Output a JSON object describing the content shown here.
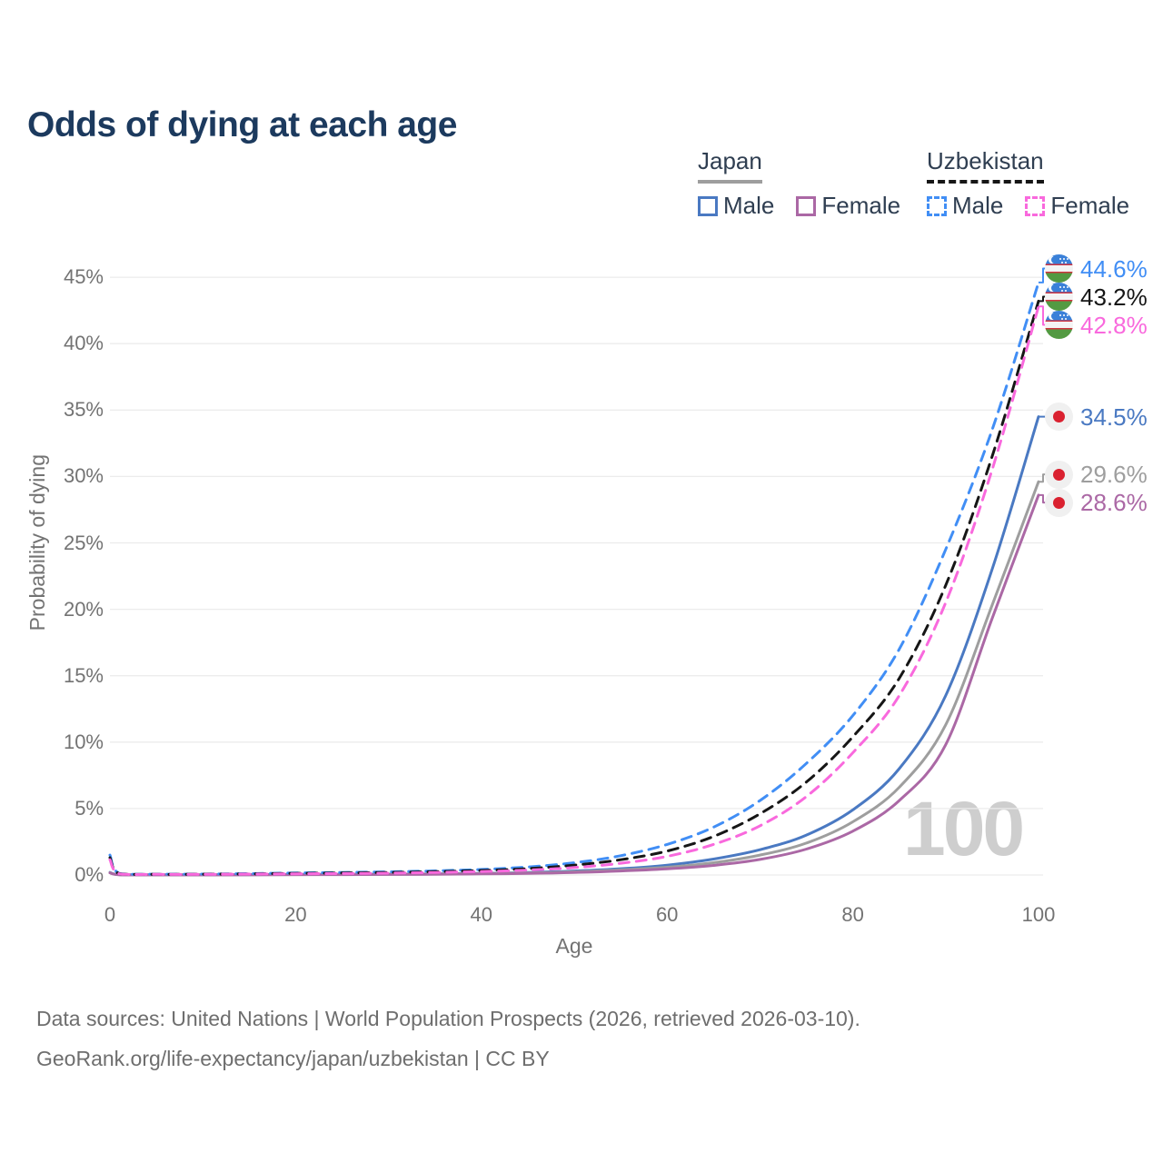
{
  "title": "Odds of dying at each age",
  "legend": {
    "japan": {
      "label": "Japan",
      "male": "Male",
      "female": "Female",
      "style": "solid",
      "line_color": "#9e9e9e",
      "male_color": "#4a79c2",
      "female_color": "#ab68a5"
    },
    "uzbekistan": {
      "label": "Uzbekistan",
      "male": "Male",
      "female": "Female",
      "style": "dashed",
      "line_color": "#161616",
      "male_color": "#418ef5",
      "female_color": "#f969dd"
    }
  },
  "chart_data": {
    "type": "line",
    "title": "Odds of dying at each age",
    "xlabel": "Age",
    "ylabel": "Probability of dying",
    "xlim": [
      0,
      100
    ],
    "ylim": [
      0,
      46
    ],
    "grid": "horizontal",
    "legend_position": "top-right",
    "age_marker": "100",
    "x_ticks": [
      {
        "label": "0",
        "value": 0
      },
      {
        "label": "20",
        "value": 20
      },
      {
        "label": "40",
        "value": 40
      },
      {
        "label": "60",
        "value": 60
      },
      {
        "label": "80",
        "value": 80
      },
      {
        "label": "100",
        "value": 100
      }
    ],
    "y_ticks": [
      {
        "label": "0%",
        "value": 0
      },
      {
        "label": "5%",
        "value": 5
      },
      {
        "label": "10%",
        "value": 10
      },
      {
        "label": "15%",
        "value": 15
      },
      {
        "label": "20%",
        "value": 20
      },
      {
        "label": "25%",
        "value": 25
      },
      {
        "label": "30%",
        "value": 30
      },
      {
        "label": "35%",
        "value": 35
      },
      {
        "label": "40%",
        "value": 40
      },
      {
        "label": "45%",
        "value": 45
      }
    ],
    "x": [
      0,
      1,
      5,
      10,
      15,
      20,
      25,
      30,
      35,
      40,
      45,
      50,
      55,
      60,
      65,
      70,
      75,
      80,
      85,
      90,
      95,
      100
    ],
    "series": [
      {
        "name": "Uzbekistan Male",
        "color": "#418ef5",
        "dash": true,
        "flag": "uzbekistan",
        "end_label": "44.6%",
        "values": [
          1.5,
          0.12,
          0.06,
          0.07,
          0.1,
          0.15,
          0.19,
          0.24,
          0.31,
          0.42,
          0.6,
          0.92,
          1.45,
          2.3,
          3.6,
          5.6,
          8.4,
          12.0,
          17.0,
          24.5,
          33.5,
          44.6
        ]
      },
      {
        "name": "Uzbekistan",
        "color": "#161616",
        "dash": true,
        "flag": "uzbekistan",
        "end_label": "43.2%",
        "values": [
          1.3,
          0.1,
          0.05,
          0.06,
          0.08,
          0.12,
          0.15,
          0.19,
          0.25,
          0.34,
          0.48,
          0.74,
          1.15,
          1.8,
          2.9,
          4.6,
          7.0,
          10.4,
          14.8,
          21.8,
          31.5,
          43.2
        ]
      },
      {
        "name": "Uzbekistan Female",
        "color": "#f969dd",
        "dash": true,
        "flag": "uzbekistan",
        "end_label": "42.8%",
        "values": [
          1.15,
          0.09,
          0.05,
          0.05,
          0.07,
          0.09,
          0.11,
          0.14,
          0.19,
          0.26,
          0.37,
          0.56,
          0.88,
          1.4,
          2.3,
          3.7,
          5.9,
          9.2,
          13.5,
          20.5,
          30.5,
          42.8
        ]
      },
      {
        "name": "Japan Male",
        "color": "#4a79c2",
        "dash": false,
        "flag": "japan",
        "end_label": "34.5%",
        "values": [
          0.19,
          0.03,
          0.01,
          0.01,
          0.02,
          0.04,
          0.05,
          0.06,
          0.08,
          0.12,
          0.19,
          0.3,
          0.47,
          0.74,
          1.2,
          1.9,
          3.0,
          4.9,
          8.0,
          13.5,
          23.0,
          34.5
        ]
      },
      {
        "name": "Japan",
        "color": "#9e9e9e",
        "dash": false,
        "flag": "japan",
        "end_label": "29.6%",
        "values": [
          0.17,
          0.025,
          0.009,
          0.009,
          0.017,
          0.03,
          0.04,
          0.05,
          0.065,
          0.1,
          0.15,
          0.24,
          0.38,
          0.58,
          0.92,
          1.5,
          2.4,
          4.0,
          6.6,
          11.3,
          20.3,
          29.6
        ]
      },
      {
        "name": "Japan Female",
        "color": "#ab68a5",
        "dash": false,
        "flag": "japan",
        "end_label": "28.6%",
        "values": [
          0.16,
          0.02,
          0.008,
          0.008,
          0.015,
          0.025,
          0.03,
          0.04,
          0.055,
          0.08,
          0.12,
          0.19,
          0.3,
          0.46,
          0.72,
          1.17,
          1.95,
          3.3,
          5.6,
          9.8,
          19.3,
          28.6
        ]
      }
    ]
  },
  "footer": {
    "line1": "Data sources: United Nations | World Population Prospects (2026, retrieved 2026-03-10).",
    "line2": "GeoRank.org/life-expectancy/japan/uzbekistan | CC BY"
  }
}
